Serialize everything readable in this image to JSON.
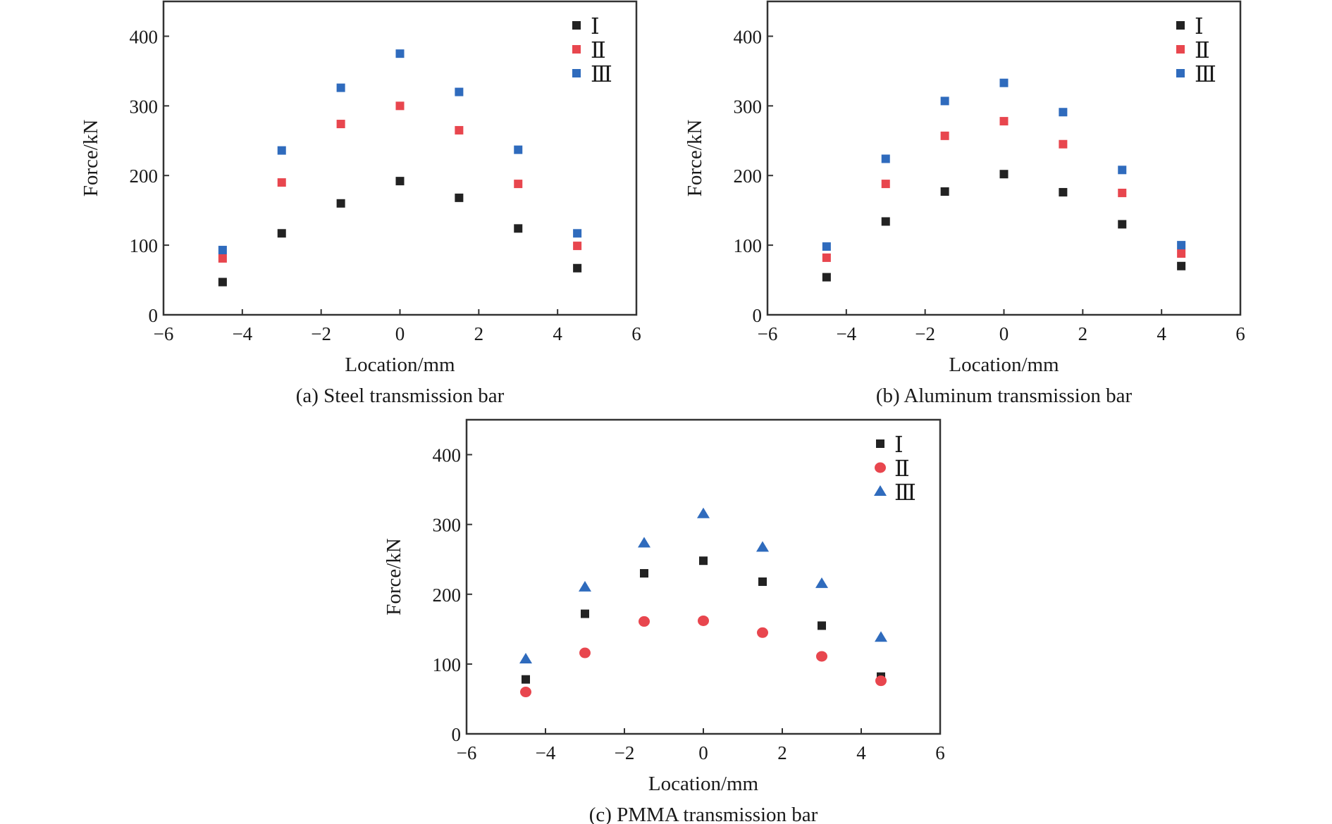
{
  "figure": {
    "panels": [
      "a",
      "b",
      "c"
    ]
  },
  "chart_data": [
    {
      "type": "scatter",
      "id": "a",
      "title": "",
      "caption": "(a) Steel transmission bar",
      "xlabel": "Location/mm",
      "ylabel": "Force/kN",
      "xlim": [
        -6,
        6
      ],
      "ylim": [
        0,
        450
      ],
      "xticks": [
        -6,
        -4,
        -2,
        0,
        2,
        4,
        6
      ],
      "xtick_labels": [
        "−6",
        "−4",
        "−2",
        "0",
        "2",
        "4",
        "6"
      ],
      "yticks": [
        0,
        100,
        200,
        300,
        400
      ],
      "ytick_labels": [
        "0",
        "100",
        "200",
        "300",
        "400"
      ],
      "grid": false,
      "legend_position": "top-right",
      "x": [
        -4.5,
        -3,
        -1.5,
        0,
        1.5,
        3,
        4.5
      ],
      "series": [
        {
          "name": "Ⅰ",
          "marker": "square",
          "color": "#222222",
          "values": [
            47,
            117,
            160,
            192,
            168,
            124,
            67
          ]
        },
        {
          "name": "Ⅱ",
          "marker": "square",
          "color": "#e8464e",
          "values": [
            81,
            190,
            274,
            300,
            265,
            188,
            99
          ]
        },
        {
          "name": "Ⅲ",
          "marker": "square",
          "color": "#2f6bbd",
          "values": [
            93,
            236,
            326,
            375,
            320,
            237,
            117
          ]
        }
      ]
    },
    {
      "type": "scatter",
      "id": "b",
      "title": "",
      "caption": "(b) Aluminum transmission bar",
      "xlabel": "Location/mm",
      "ylabel": "Force/kN",
      "xlim": [
        -6,
        6
      ],
      "ylim": [
        0,
        450
      ],
      "xticks": [
        -6,
        -4,
        -2,
        0,
        2,
        4,
        6
      ],
      "xtick_labels": [
        "−6",
        "−4",
        "−2",
        "0",
        "2",
        "4",
        "6"
      ],
      "yticks": [
        0,
        100,
        200,
        300,
        400
      ],
      "ytick_labels": [
        "0",
        "100",
        "200",
        "300",
        "400"
      ],
      "grid": false,
      "legend_position": "top-right",
      "x": [
        -4.5,
        -3,
        -1.5,
        0,
        1.5,
        3,
        4.5
      ],
      "series": [
        {
          "name": "Ⅰ",
          "marker": "square",
          "color": "#222222",
          "values": [
            54,
            134,
            177,
            202,
            176,
            130,
            70
          ]
        },
        {
          "name": "Ⅱ",
          "marker": "square",
          "color": "#e8464e",
          "values": [
            82,
            188,
            257,
            278,
            245,
            175,
            88
          ]
        },
        {
          "name": "Ⅲ",
          "marker": "square",
          "color": "#2f6bbd",
          "values": [
            98,
            224,
            307,
            333,
            291,
            208,
            100
          ]
        }
      ]
    },
    {
      "type": "scatter",
      "id": "c",
      "title": "",
      "caption": "(c) PMMA transmission bar",
      "xlabel": "Location/mm",
      "ylabel": "Force/kN",
      "xlim": [
        -6,
        6
      ],
      "ylim": [
        0,
        450
      ],
      "xticks": [
        -6,
        -4,
        -2,
        0,
        2,
        4,
        6
      ],
      "xtick_labels": [
        "−6",
        "−4",
        "−2",
        "0",
        "2",
        "4",
        "6"
      ],
      "yticks": [
        0,
        100,
        200,
        300,
        400
      ],
      "ytick_labels": [
        "0",
        "100",
        "200",
        "300",
        "400"
      ],
      "grid": false,
      "legend_position": "top-right",
      "x": [
        -4.5,
        -3,
        -1.5,
        0,
        1.5,
        3,
        4.5
      ],
      "series": [
        {
          "name": "Ⅰ",
          "marker": "square",
          "color": "#222222",
          "values": [
            78,
            172,
            230,
            248,
            218,
            155,
            82
          ]
        },
        {
          "name": "Ⅱ",
          "marker": "circle",
          "color": "#e8464e",
          "values": [
            60,
            116,
            161,
            162,
            145,
            111,
            76
          ]
        },
        {
          "name": "Ⅲ",
          "marker": "triangle",
          "color": "#2f6bbd",
          "values": [
            107,
            210,
            273,
            315,
            267,
            215,
            138
          ]
        }
      ]
    }
  ]
}
